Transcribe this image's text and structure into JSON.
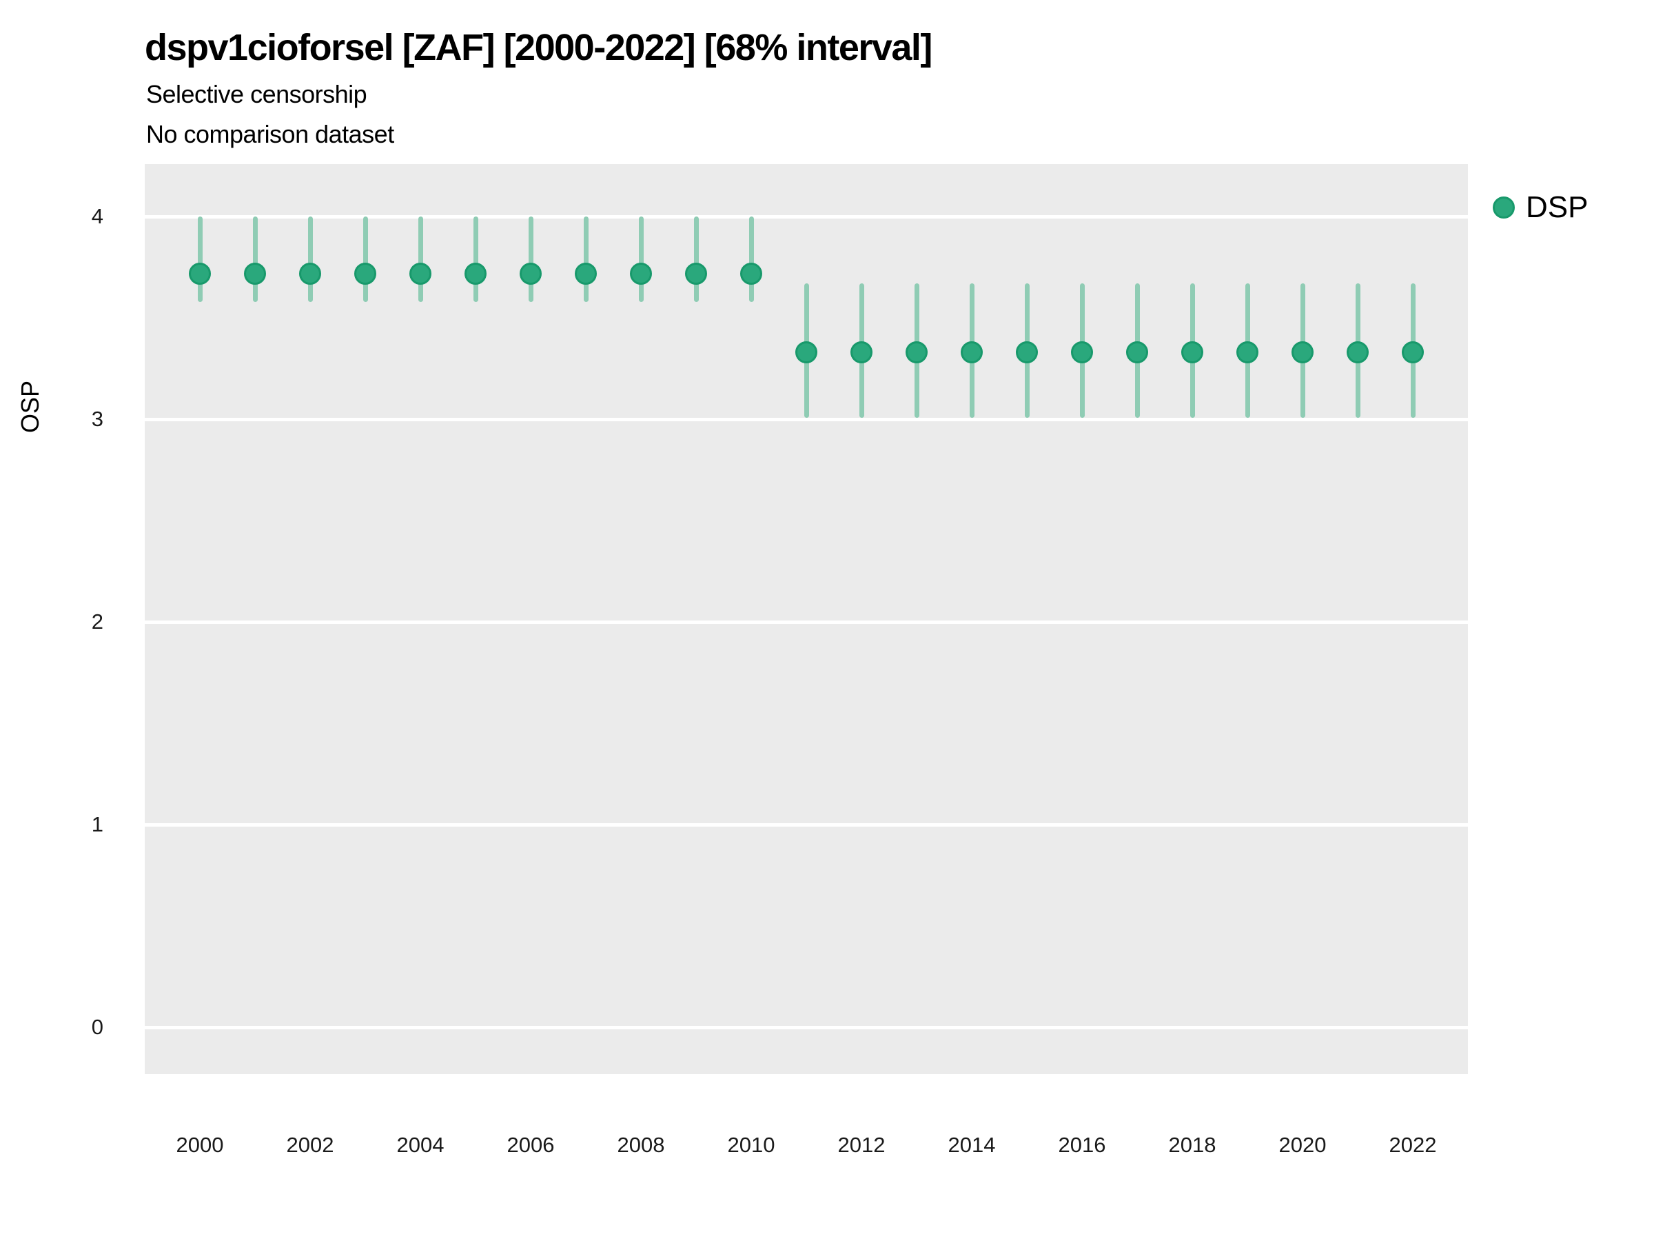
{
  "colors": {
    "point_fill": "#2aa87c",
    "point_stroke": "#18996b",
    "interval": "#8fccb4",
    "panel_bg": "#ebebeb",
    "gridline": "#ffffff"
  },
  "chart_data": {
    "type": "pointrange",
    "title": "dspv1cioforsel [ZAF] [2000-2022] [68% interval]",
    "subtitle": "Selective censorship",
    "subtitle2": "No comparison dataset",
    "xlabel": "",
    "ylabel": "OSP",
    "interval_level": "68%",
    "grid": "major-y-only",
    "legend_position": "top-right",
    "x_domain": [
      1999,
      2023
    ],
    "y_domain": [
      -0.23,
      4.26
    ],
    "x_ticks": [
      2000,
      2002,
      2004,
      2006,
      2008,
      2010,
      2012,
      2014,
      2016,
      2018,
      2020,
      2022
    ],
    "y_ticks": [
      0,
      1,
      2,
      3,
      4
    ],
    "legend": [
      {
        "label": "DSP"
      }
    ],
    "series": [
      {
        "name": "DSP",
        "points": [
          {
            "x": 2000,
            "y": 3.72,
            "lo": 3.59,
            "hi": 3.99
          },
          {
            "x": 2001,
            "y": 3.72,
            "lo": 3.59,
            "hi": 3.99
          },
          {
            "x": 2002,
            "y": 3.72,
            "lo": 3.59,
            "hi": 3.99
          },
          {
            "x": 2003,
            "y": 3.72,
            "lo": 3.59,
            "hi": 3.99
          },
          {
            "x": 2004,
            "y": 3.72,
            "lo": 3.59,
            "hi": 3.99
          },
          {
            "x": 2005,
            "y": 3.72,
            "lo": 3.59,
            "hi": 3.99
          },
          {
            "x": 2006,
            "y": 3.72,
            "lo": 3.59,
            "hi": 3.99
          },
          {
            "x": 2007,
            "y": 3.72,
            "lo": 3.59,
            "hi": 3.99
          },
          {
            "x": 2008,
            "y": 3.72,
            "lo": 3.59,
            "hi": 3.99
          },
          {
            "x": 2009,
            "y": 3.72,
            "lo": 3.59,
            "hi": 3.99
          },
          {
            "x": 2010,
            "y": 3.72,
            "lo": 3.59,
            "hi": 3.99
          },
          {
            "x": 2011,
            "y": 3.33,
            "lo": 3.02,
            "hi": 3.66
          },
          {
            "x": 2012,
            "y": 3.33,
            "lo": 3.02,
            "hi": 3.66
          },
          {
            "x": 2013,
            "y": 3.33,
            "lo": 3.02,
            "hi": 3.66
          },
          {
            "x": 2014,
            "y": 3.33,
            "lo": 3.02,
            "hi": 3.66
          },
          {
            "x": 2015,
            "y": 3.33,
            "lo": 3.02,
            "hi": 3.66
          },
          {
            "x": 2016,
            "y": 3.33,
            "lo": 3.02,
            "hi": 3.66
          },
          {
            "x": 2017,
            "y": 3.33,
            "lo": 3.02,
            "hi": 3.66
          },
          {
            "x": 2018,
            "y": 3.33,
            "lo": 3.02,
            "hi": 3.66
          },
          {
            "x": 2019,
            "y": 3.33,
            "lo": 3.02,
            "hi": 3.66
          },
          {
            "x": 2020,
            "y": 3.33,
            "lo": 3.02,
            "hi": 3.66
          },
          {
            "x": 2021,
            "y": 3.33,
            "lo": 3.02,
            "hi": 3.66
          },
          {
            "x": 2022,
            "y": 3.33,
            "lo": 3.02,
            "hi": 3.66
          }
        ]
      }
    ]
  }
}
